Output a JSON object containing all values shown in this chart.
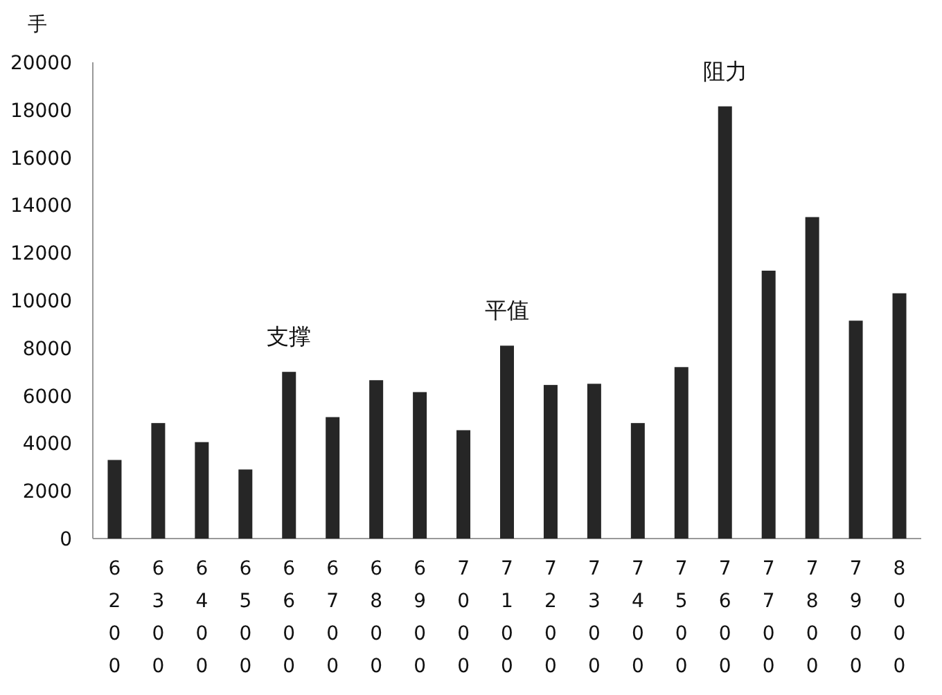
{
  "chart_data": {
    "type": "bar",
    "ylabel": "手",
    "categories": [
      "6200",
      "6300",
      "6400",
      "6500",
      "6600",
      "6700",
      "6800",
      "6900",
      "7000",
      "7100",
      "7200",
      "7300",
      "7400",
      "7500",
      "7600",
      "7700",
      "7800",
      "7900",
      "8000"
    ],
    "values": [
      3300,
      4850,
      4050,
      2900,
      7000,
      5100,
      6650,
      6150,
      4550,
      8100,
      6450,
      6500,
      4850,
      7200,
      18150,
      11250,
      13500,
      9150,
      10300
    ],
    "color": "#262626",
    "ylim": [
      0,
      20000
    ],
    "yticks": [
      0,
      2000,
      4000,
      6000,
      8000,
      10000,
      12000,
      14000,
      16000,
      18000,
      20000
    ],
    "grid": false,
    "annotations": [
      {
        "text": "支撑",
        "x": "6600",
        "y": 7000
      },
      {
        "text": "平值",
        "x": "7100",
        "y": 8100
      },
      {
        "text": "阻力",
        "x": "7600",
        "y": 18150
      }
    ]
  }
}
